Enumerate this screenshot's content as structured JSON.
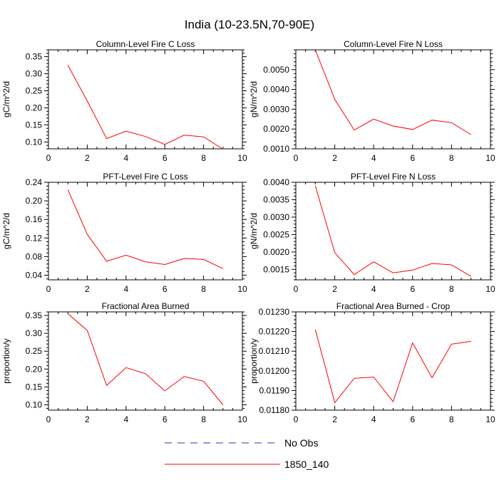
{
  "figure": {
    "title": "India (10-23.5N,70-90E)"
  },
  "chart_data": [
    {
      "type": "line",
      "title": "Column-Level Fire C Loss",
      "xlabel": "",
      "ylabel": "gC/m^2/d",
      "xlim": [
        0,
        10
      ],
      "ylim": [
        0.08,
        0.37
      ],
      "xticks": [
        0,
        2,
        4,
        6,
        8,
        10
      ],
      "xtick_labels": [
        "0",
        "2",
        "4",
        "6",
        "8",
        "10"
      ],
      "yticks": [
        0.1,
        0.15,
        0.2,
        0.25,
        0.3,
        0.35
      ],
      "ytick_labels": [
        "0.10",
        "0.15",
        "0.20",
        "0.25",
        "0.30",
        "0.35"
      ],
      "series": [
        {
          "name": "1850_140",
          "x": [
            1,
            2,
            3,
            4,
            5,
            6,
            7,
            8,
            9
          ],
          "y": [
            0.325,
            0.22,
            0.11,
            0.132,
            0.116,
            0.093,
            0.12,
            0.115,
            0.079
          ]
        }
      ]
    },
    {
      "type": "line",
      "title": "Column-Level Fire N Loss",
      "xlabel": "",
      "ylabel": "gN/m^2/d",
      "xlim": [
        0,
        10
      ],
      "ylim": [
        0.001,
        0.006
      ],
      "xticks": [
        0,
        2,
        4,
        6,
        8,
        10
      ],
      "xtick_labels": [
        "0",
        "2",
        "4",
        "6",
        "8",
        "10"
      ],
      "yticks": [
        0.001,
        0.002,
        0.003,
        0.004,
        0.005
      ],
      "ytick_labels": [
        "0.0010",
        "0.0020",
        "0.0030",
        "0.0040",
        "0.0050"
      ],
      "series": [
        {
          "name": "1850_140",
          "x": [
            1,
            2,
            3,
            4,
            5,
            6,
            7,
            8,
            9
          ],
          "y": [
            0.006,
            0.0035,
            0.00195,
            0.0025,
            0.00215,
            0.00198,
            0.00245,
            0.00232,
            0.00172
          ]
        }
      ]
    },
    {
      "type": "line",
      "title": "PFT-Level Fire C Loss",
      "xlabel": "",
      "ylabel": "gC/m^2/d",
      "xlim": [
        0,
        10
      ],
      "ylim": [
        0.03,
        0.24
      ],
      "xticks": [
        0,
        2,
        4,
        6,
        8,
        10
      ],
      "xtick_labels": [
        "0",
        "2",
        "4",
        "6",
        "8",
        "10"
      ],
      "yticks": [
        0.04,
        0.08,
        0.12,
        0.16,
        0.2,
        0.24
      ],
      "ytick_labels": [
        "0.04",
        "0.08",
        "0.12",
        "0.16",
        "0.20",
        "0.24"
      ],
      "series": [
        {
          "name": "1850_140",
          "x": [
            1,
            2,
            3,
            4,
            5,
            6,
            7,
            8,
            9
          ],
          "y": [
            0.224,
            0.128,
            0.07,
            0.083,
            0.069,
            0.063,
            0.076,
            0.074,
            0.054
          ]
        }
      ]
    },
    {
      "type": "line",
      "title": "PFT-Level Fire N Loss",
      "xlabel": "",
      "ylabel": "gN/m^2/d",
      "xlim": [
        0,
        10
      ],
      "ylim": [
        0.0012,
        0.004
      ],
      "xticks": [
        0,
        2,
        4,
        6,
        8,
        10
      ],
      "xtick_labels": [
        "0",
        "2",
        "4",
        "6",
        "8",
        "10"
      ],
      "yticks": [
        0.0015,
        0.002,
        0.0025,
        0.003,
        0.0035,
        0.004
      ],
      "ytick_labels": [
        "0.0015",
        "0.0020",
        "0.0025",
        "0.0030",
        "0.0035",
        "0.0040"
      ],
      "series": [
        {
          "name": "1850_140",
          "x": [
            1,
            2,
            3,
            4,
            5,
            6,
            7,
            8,
            9
          ],
          "y": [
            0.0039,
            0.00198,
            0.00135,
            0.00172,
            0.0014,
            0.00148,
            0.00167,
            0.00163,
            0.0013
          ]
        }
      ]
    },
    {
      "type": "line",
      "title": "Fractional Area Burned",
      "xlabel": "",
      "ylabel": "proportion/y",
      "xlim": [
        0,
        10
      ],
      "ylim": [
        0.085,
        0.36
      ],
      "xticks": [
        0,
        2,
        4,
        6,
        8,
        10
      ],
      "xtick_labels": [
        "0",
        "2",
        "4",
        "6",
        "8",
        "10"
      ],
      "yticks": [
        0.1,
        0.15,
        0.2,
        0.25,
        0.3,
        0.35
      ],
      "ytick_labels": [
        "0.10",
        "0.15",
        "0.20",
        "0.25",
        "0.30",
        "0.35"
      ],
      "series": [
        {
          "name": "1850_140",
          "x": [
            1,
            2,
            3,
            4,
            5,
            6,
            7,
            8,
            9
          ],
          "y": [
            0.355,
            0.308,
            0.154,
            0.204,
            0.187,
            0.139,
            0.179,
            0.166,
            0.1
          ]
        }
      ]
    },
    {
      "type": "line",
      "title": "Fractional Area Burned - Crop",
      "xlabel": "",
      "ylabel": "proportion/y",
      "xlim": [
        0,
        10
      ],
      "ylim": [
        0.0118,
        0.0123
      ],
      "xticks": [
        0,
        2,
        4,
        6,
        8,
        10
      ],
      "xtick_labels": [
        "0",
        "2",
        "4",
        "6",
        "8",
        "10"
      ],
      "yticks": [
        0.0118,
        0.0119,
        0.012,
        0.0121,
        0.0122,
        0.0123
      ],
      "ytick_labels": [
        "0.01180",
        "0.01190",
        "0.01200",
        "0.01210",
        "0.01220",
        "0.01230"
      ],
      "series": [
        {
          "name": "1850_140",
          "x": [
            1,
            2,
            3,
            4,
            5,
            6,
            7,
            8,
            9
          ],
          "y": [
            0.01221,
            0.011838,
            0.011962,
            0.011968,
            0.011843,
            0.012142,
            0.011965,
            0.012136,
            0.01215
          ]
        }
      ]
    }
  ],
  "legend": {
    "placement": "bottom-center",
    "entries": [
      {
        "label": "No Obs",
        "color": "#3333aa",
        "style": "dashed"
      },
      {
        "label": "1850_140",
        "color": "#ff0000",
        "style": "solid"
      }
    ]
  },
  "colors": {
    "series_line": "#ff0000",
    "axis": "#000000"
  }
}
